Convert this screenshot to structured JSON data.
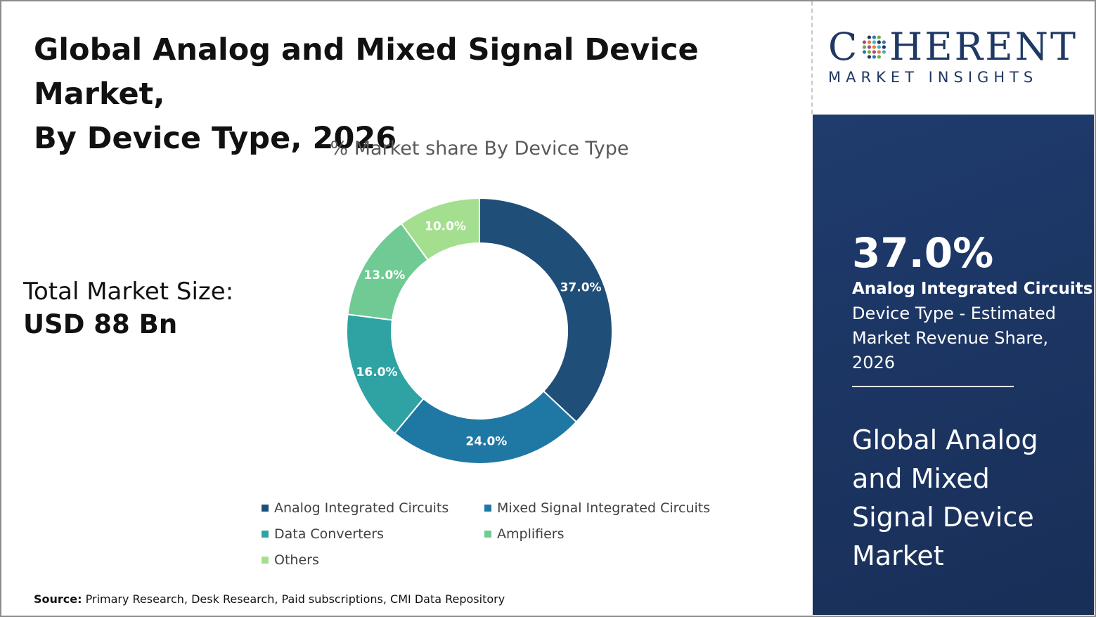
{
  "title": {
    "line1": "Global Analog and Mixed Signal Device Market,",
    "line2": "By Device Type, 2026"
  },
  "market_size": {
    "label": "Total Market Size:",
    "value": "USD 88 Bn"
  },
  "source": {
    "label": "Source:",
    "text": " Primary Research, Desk Research, Paid subscriptions, CMI Data Repository"
  },
  "logo": {
    "line1_pre": "C",
    "line1_post": "HERENT",
    "line2": "MARKET INSIGHTS"
  },
  "side_panel": {
    "percent": "37.0%",
    "segment": "Analog Integrated Circuits",
    "description": "Device Type - Estimated Market Revenue Share, 2026",
    "market_name": "Global Analog and Mixed Signal Device Market"
  },
  "colors": {
    "title_text": "#111111",
    "panel_bg": "#1b3461",
    "logo_blue": "#1f3864"
  },
  "chart_data": {
    "type": "pie",
    "subtitle": "% Market share By Device Type",
    "donut": true,
    "categories": [
      "Analog Integrated Circuits",
      "Mixed Signal Integrated Circuits",
      "Data Converters",
      "Amplifiers",
      "Others"
    ],
    "values": [
      37.0,
      24.0,
      16.0,
      13.0,
      10.0
    ],
    "labels": [
      "37.0%",
      "24.0%",
      "16.0%",
      "13.0%",
      "10.0%"
    ],
    "colors": [
      "#1f4e79",
      "#1f77a4",
      "#2fa3a3",
      "#6fcb93",
      "#a3df8f"
    ],
    "legend_position": "bottom"
  }
}
